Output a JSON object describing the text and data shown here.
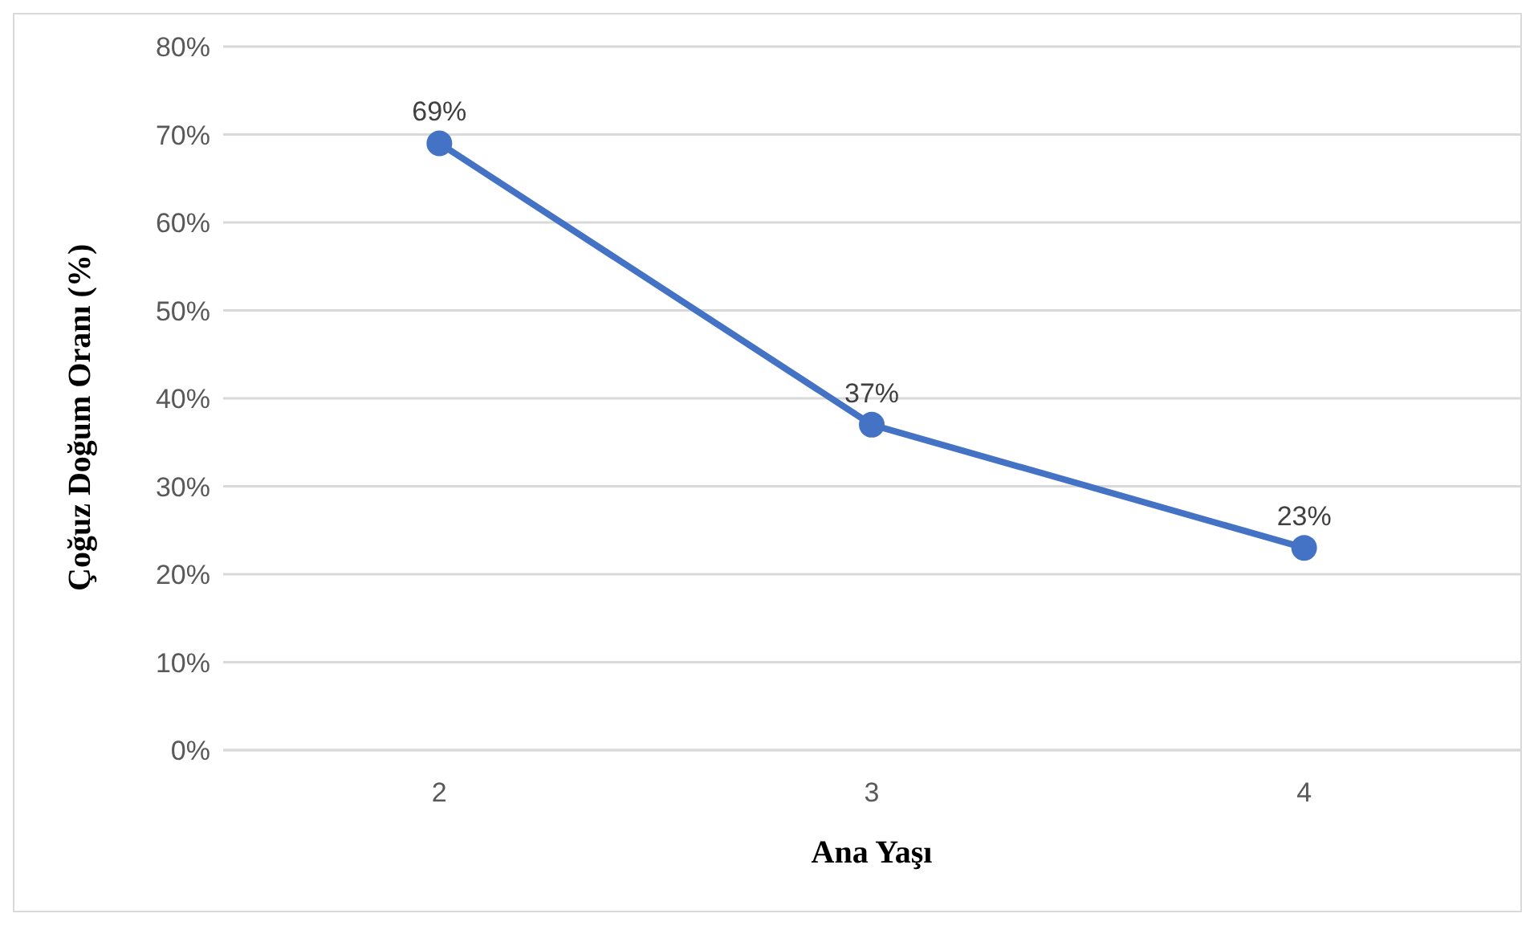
{
  "chart_data": {
    "type": "line",
    "xlabel": "Ana Yaşı",
    "ylabel": "Çoğuz Doğum Oranı (%)",
    "categories": [
      "2",
      "3",
      "4"
    ],
    "series": [
      {
        "color": "#4472c4",
        "values": [
          69,
          37,
          23
        ],
        "value_labels": [
          "69%",
          "37%",
          "23%"
        ]
      }
    ],
    "ylim": [
      0,
      80
    ],
    "yticks": [
      {
        "value": 0,
        "label": "0%"
      },
      {
        "value": 10,
        "label": "10%"
      },
      {
        "value": 20,
        "label": "20%"
      },
      {
        "value": 30,
        "label": "30%"
      },
      {
        "value": 40,
        "label": "40%"
      },
      {
        "value": 50,
        "label": "50%"
      },
      {
        "value": 60,
        "label": "60%"
      },
      {
        "value": 70,
        "label": "70%"
      },
      {
        "value": 80,
        "label": "80%"
      }
    ],
    "grid": "y",
    "marker": "circle",
    "line_style": "solid"
  }
}
